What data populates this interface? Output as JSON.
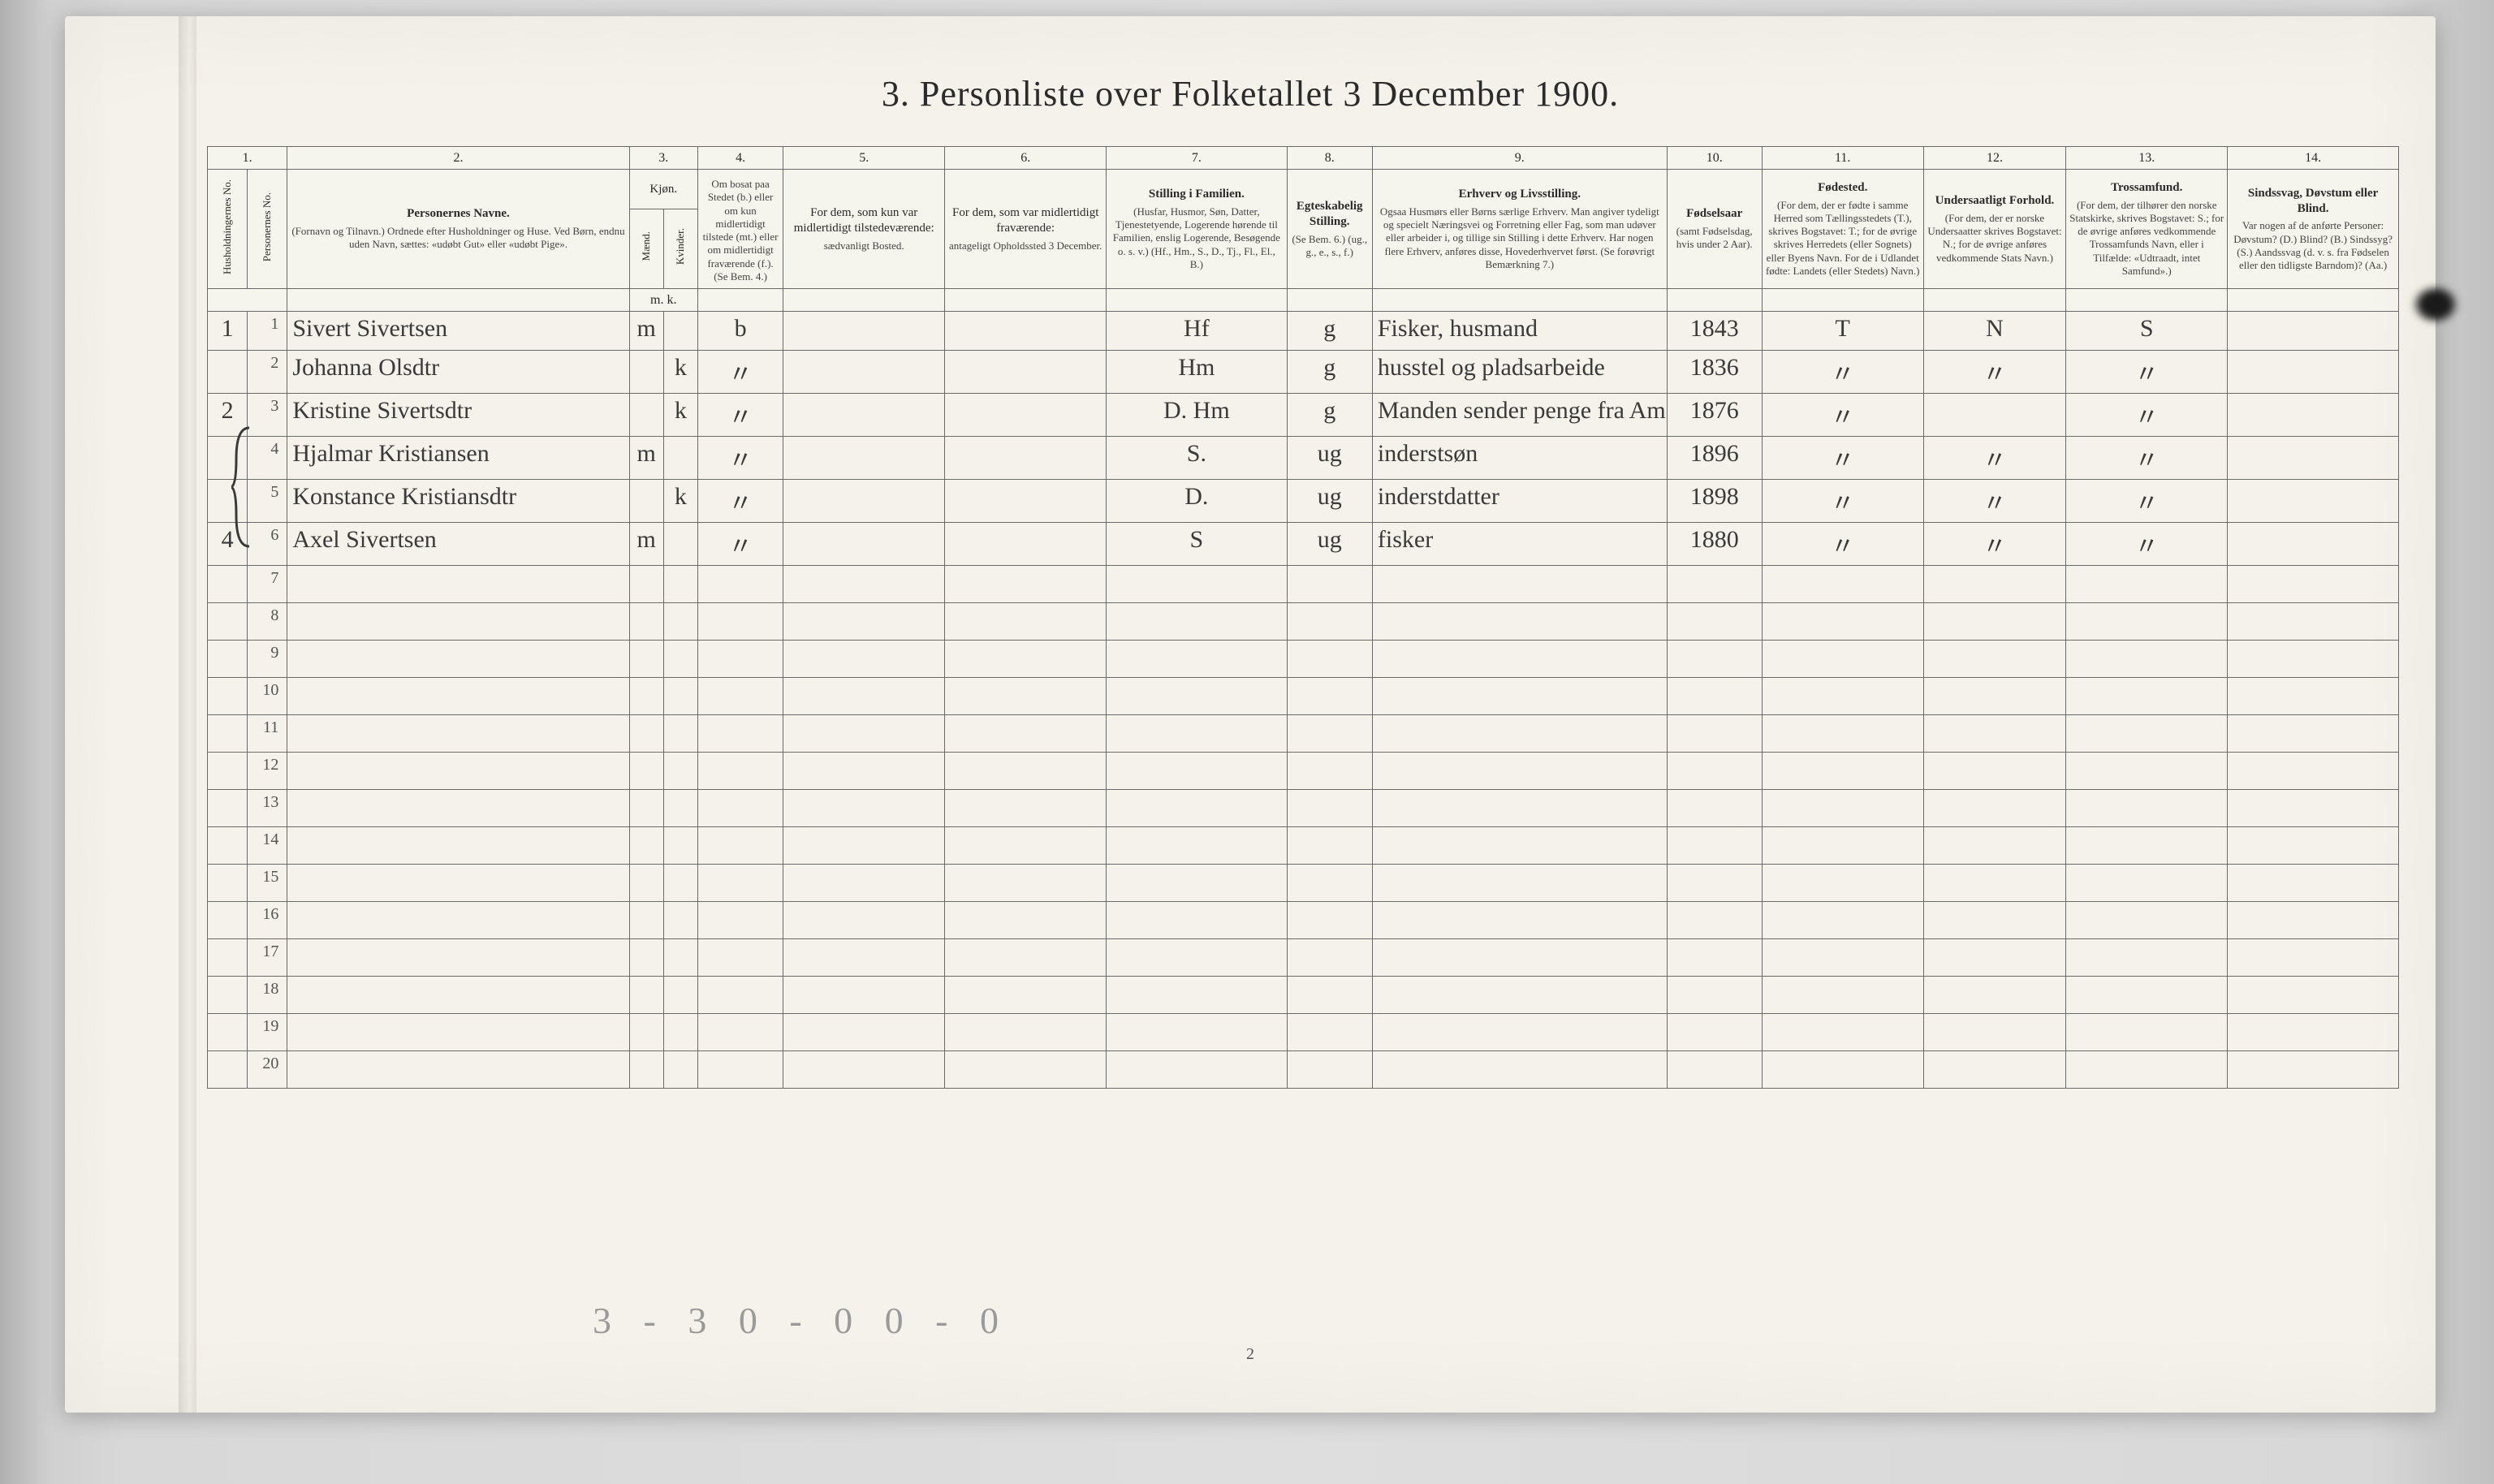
{
  "title": "3. Personliste over Folketallet 3 December 1900.",
  "page_number": "2",
  "pencil_note": "3 - 3 0 - 0   0 - 0",
  "columns": {
    "num1": "1.",
    "num2": "2.",
    "num3": "3.",
    "num4": "4.",
    "num5": "5.",
    "num6": "6.",
    "num7": "7.",
    "num8": "8.",
    "num9": "9.",
    "num10": "10.",
    "num11": "11.",
    "num12": "12.",
    "num13": "13.",
    "num14": "14.",
    "c1a": "Husholdningernes No.",
    "c1b": "Personernes No.",
    "c2_title": "Personernes Navne.",
    "c2_sub": "(Fornavn og Tilnavn.) Ordnede efter Husholdninger og Huse. Ved Børn, endnu uden Navn, sættes: «udøbt Gut» eller «udøbt Pige».",
    "c3_title": "Kjøn.",
    "c3_m": "Mænd.",
    "c3_k": "Kvinder.",
    "c3_mk": "m.  k.",
    "c4_title": "Om bosat paa Stedet (b.) eller om kun midlertidigt tilstede (mt.) eller om midlertidigt fraværende (f.). (Se Bem. 4.)",
    "c5_title": "For dem, som kun var midlertidigt tilstedeværende:",
    "c5_sub": "sædvanligt Bosted.",
    "c6_title": "For dem, som var midlertidigt fraværende:",
    "c6_sub": "antageligt Opholdssted 3 December.",
    "c7_title": "Stilling i Familien.",
    "c7_sub": "(Husfar, Husmor, Søn, Datter, Tjenestetyende, Logerende hørende til Familien, enslig Logerende, Besøgende o. s. v.) (Hf., Hm., S., D., Tj., Fl., El., B.)",
    "c8_title": "Egteskabelig Stilling.",
    "c8_sub": "(Se Bem. 6.) (ug., g., e., s., f.)",
    "c9_title": "Erhverv og Livsstilling.",
    "c9_sub": "Ogsaa Husmørs eller Børns særlige Erhverv. Man angiver tydeligt og specielt Næringsvei og Forretning eller Fag, som man udøver eller arbeider i, og tillige sin Stilling i dette Erhverv. Har nogen flere Erhverv, anføres disse, Hovederhvervet først. (Se forøvrigt Bemærkning 7.)",
    "c10_title": "Fødselsaar",
    "c10_sub": "(samt Fødselsdag, hvis under 2 Aar).",
    "c11_title": "Fødested.",
    "c11_sub": "(For dem, der er fødte i samme Herred som Tællingsstedets (T.), skrives Bogstavet: T.; for de øvrige skrives Herredets (eller Sognets) eller Byens Navn. For de i Udlandet fødte: Landets (eller Stedets) Navn.)",
    "c12_title": "Undersaatligt Forhold.",
    "c12_sub": "(For dem, der er norske Undersaatter skrives Bogstavet: N.; for de øvrige anføres vedkommende Stats Navn.)",
    "c13_title": "Trossamfund.",
    "c13_sub": "(For dem, der tilhører den norske Statskirke, skrives Bogstavet: S.; for de øvrige anføres vedkommende Trossamfunds Navn, eller i Tilfælde: «Udtraadt, intet Samfund».)",
    "c14_title": "Sindssvag, Døvstum eller Blind.",
    "c14_sub": "Var nogen af de anførte Personer: Døvstum? (D.) Blind? (B.) Sindssyg? (S.) Aandssvag (d. v. s. fra Fødselen eller den tidligste Barndom)? (Aa.)"
  },
  "rows": [
    {
      "hh": "1",
      "pn": "1",
      "name": "Sivert Sivertsen",
      "kj": "m",
      "bosat": "b",
      "c5": "",
      "c6": "",
      "fam": "Hf",
      "egt": "g",
      "erhv": "Fisker, husmand",
      "aar": "1843",
      "fsted": "T",
      "und": "N",
      "tros": "S",
      "c14": ""
    },
    {
      "hh": "",
      "pn": "2",
      "name": "Johanna Olsdtr",
      "kj": "k",
      "bosat": "〃",
      "c5": "",
      "c6": "",
      "fam": "Hm",
      "egt": "g",
      "erhv": "husstel og pladsarbeide",
      "aar": "1836",
      "fsted": "〃",
      "und": "〃",
      "tros": "〃",
      "c14": ""
    },
    {
      "hh": "2",
      "pn": "3",
      "name": "Kristine Sivertsdtr",
      "kj": "k",
      "bosat": "〃",
      "c5": "",
      "c6": "",
      "fam": "D. Hm",
      "egt": "g",
      "erhv": "Manden sender penge fra Amerika. Hust arb",
      "aar": "1876",
      "fsted": "〃",
      "und": "",
      "tros": "〃",
      "c14": ""
    },
    {
      "hh": "",
      "pn": "4",
      "name": "Hjalmar Kristiansen",
      "kj": "m",
      "bosat": "〃",
      "c5": "",
      "c6": "",
      "fam": "S.",
      "egt": "ug",
      "erhv": "inderstsøn",
      "aar": "1896",
      "fsted": "〃",
      "und": "〃",
      "tros": "〃",
      "c14": ""
    },
    {
      "hh": "",
      "pn": "5",
      "name": "Konstance Kristiansdtr",
      "kj": "k",
      "bosat": "〃",
      "c5": "",
      "c6": "",
      "fam": "D.",
      "egt": "ug",
      "erhv": "inderstdatter",
      "aar": "1898",
      "fsted": "〃",
      "und": "〃",
      "tros": "〃",
      "c14": ""
    },
    {
      "hh": "4",
      "pn": "6",
      "name": "Axel Sivertsen",
      "kj": "m",
      "bosat": "〃",
      "c5": "",
      "c6": "",
      "fam": "S",
      "egt": "ug",
      "erhv": "fisker",
      "aar": "1880",
      "fsted": "〃",
      "und": "〃",
      "tros": "〃",
      "c14": ""
    }
  ],
  "empty_rows": [
    "7",
    "8",
    "9",
    "10",
    "11",
    "12",
    "13",
    "14",
    "15",
    "16",
    "17",
    "18",
    "19",
    "20"
  ]
}
